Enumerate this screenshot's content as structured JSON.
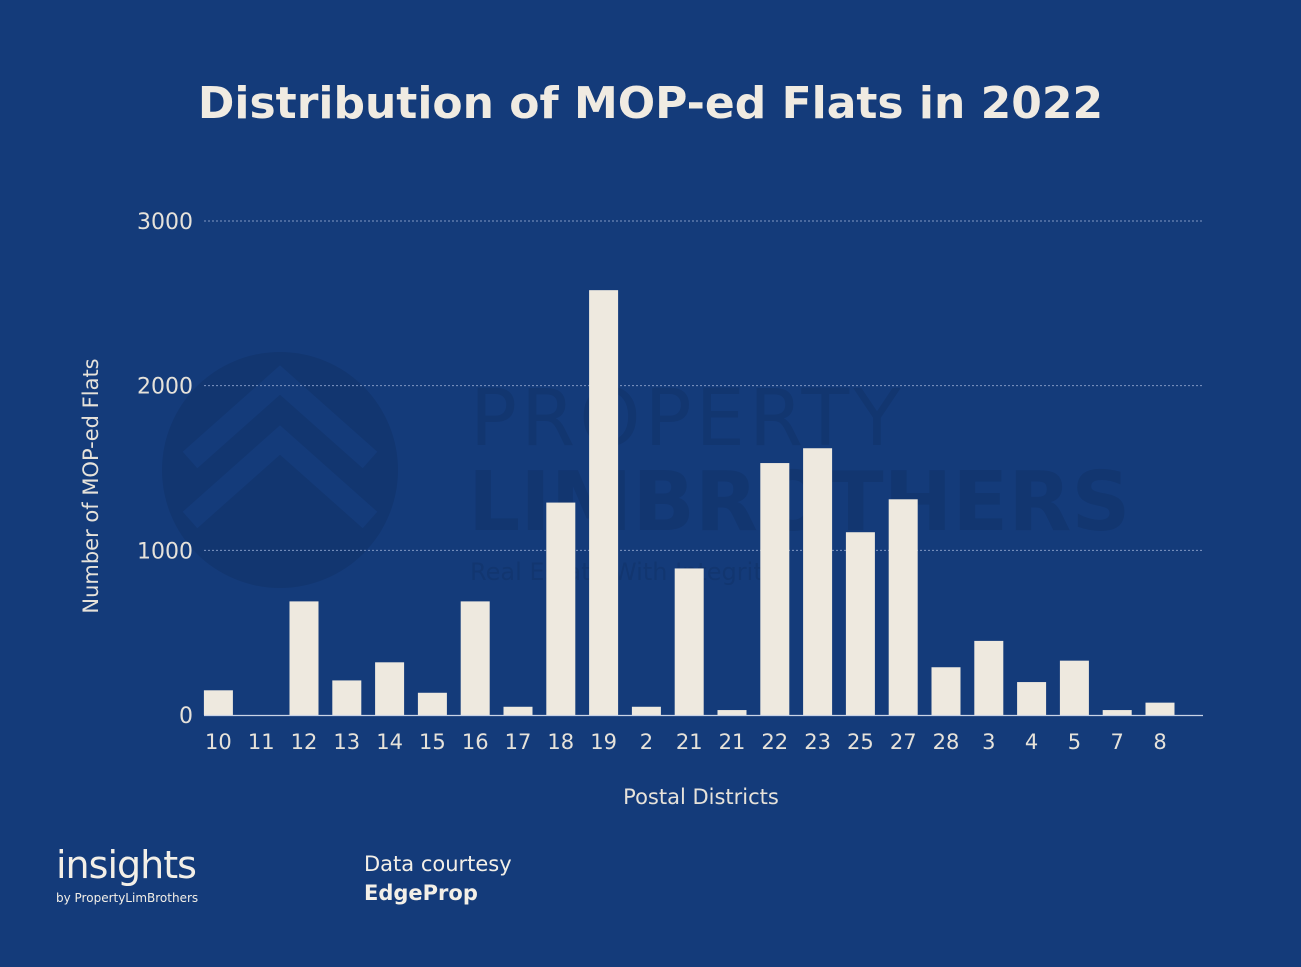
{
  "chart_data": {
    "type": "bar",
    "title": "Distribution of MOP-ed Flats in 2022",
    "xlabel": "Postal Districts",
    "ylabel": "Number of MOP-ed Flats",
    "categories": [
      "10",
      "11",
      "12",
      "13",
      "14",
      "15",
      "16",
      "17",
      "18",
      "19",
      "2",
      "21",
      "21",
      "22",
      "23",
      "25",
      "27",
      "28",
      "3",
      "4",
      "5",
      "7",
      "8"
    ],
    "values": [
      150,
      0,
      690,
      210,
      320,
      135,
      690,
      50,
      1290,
      2580,
      50,
      890,
      30,
      1530,
      1620,
      1110,
      1310,
      290,
      450,
      200,
      330,
      30,
      75
    ],
    "ylim": [
      0,
      3000
    ],
    "yticks": [
      0,
      1000,
      2000,
      3000
    ],
    "grid": "horizontal dotted",
    "legend": "none",
    "colors": {
      "background": "#143b7a",
      "bar": "#eee9df",
      "grid": "#7f97c2"
    }
  },
  "watermark": {
    "line1": "PROPERTY",
    "line2": "LIMBROTHERS",
    "tagline": "Real Estate With Integrity",
    "icon": "roof-chevron-logo"
  },
  "footer": {
    "logo_main": "insights",
    "logo_sub": "by PropertyLimBrothers",
    "credit_line": "Data courtesy",
    "credit_source": "EdgeProp"
  }
}
